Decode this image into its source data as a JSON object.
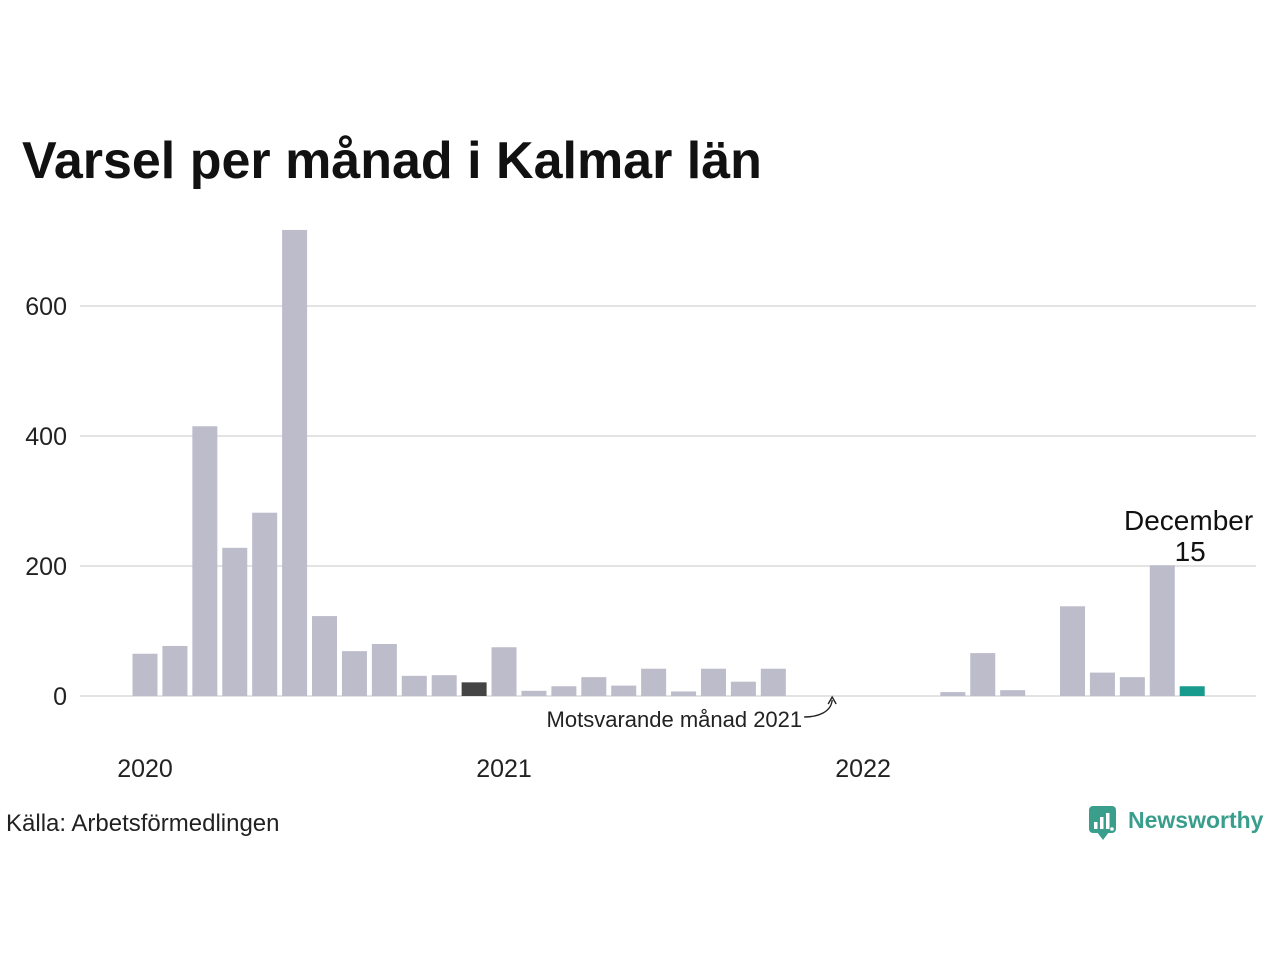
{
  "chart_data": {
    "type": "bar",
    "title": "Varsel per månad i Kalmar län",
    "x": [
      "2020-01",
      "2020-02",
      "2020-03",
      "2020-04",
      "2020-05",
      "2020-06",
      "2020-07",
      "2020-08",
      "2020-09",
      "2020-10",
      "2020-11",
      "2020-12",
      "2021-01",
      "2021-02",
      "2021-03",
      "2021-04",
      "2021-05",
      "2021-06",
      "2021-07",
      "2021-08",
      "2021-09",
      "2021-10",
      "2021-11",
      "2021-12",
      "2022-01",
      "2022-02",
      "2022-03",
      "2022-04",
      "2022-05",
      "2022-06",
      "2022-07",
      "2022-08",
      "2022-09",
      "2022-10",
      "2022-11",
      "2022-12"
    ],
    "values": [
      65,
      77,
      415,
      228,
      282,
      717,
      123,
      69,
      80,
      31,
      32,
      21,
      75,
      8,
      15,
      29,
      16,
      42,
      7,
      42,
      22,
      42,
      0,
      0,
      0,
      0,
      0,
      6,
      66,
      9,
      0,
      138,
      36,
      29,
      201,
      15
    ],
    "x_tick_labels": [
      "2020",
      "2021",
      "2022"
    ],
    "y_ticks": [
      0,
      200,
      400,
      600
    ],
    "ylim": [
      0,
      720
    ],
    "grid": true,
    "colors": {
      "bar": "#bdbccb",
      "grid": "#e3e3e3"
    },
    "highlights": [
      {
        "x": "2020-12",
        "color": "#444444"
      },
      {
        "x": "2022-12",
        "color": "#189b8c"
      }
    ],
    "annotations": [
      {
        "x": "2022-12",
        "label": "December",
        "value": "15"
      },
      {
        "x": "2021-12",
        "text": "Motsvarande månad 2021",
        "arrow": true
      }
    ]
  },
  "source": "Källa: Arbetsförmedlingen",
  "logo": {
    "name": "Newsworthy",
    "icon": "chart-speech-bubble-icon",
    "color": "#3a9e8c"
  }
}
